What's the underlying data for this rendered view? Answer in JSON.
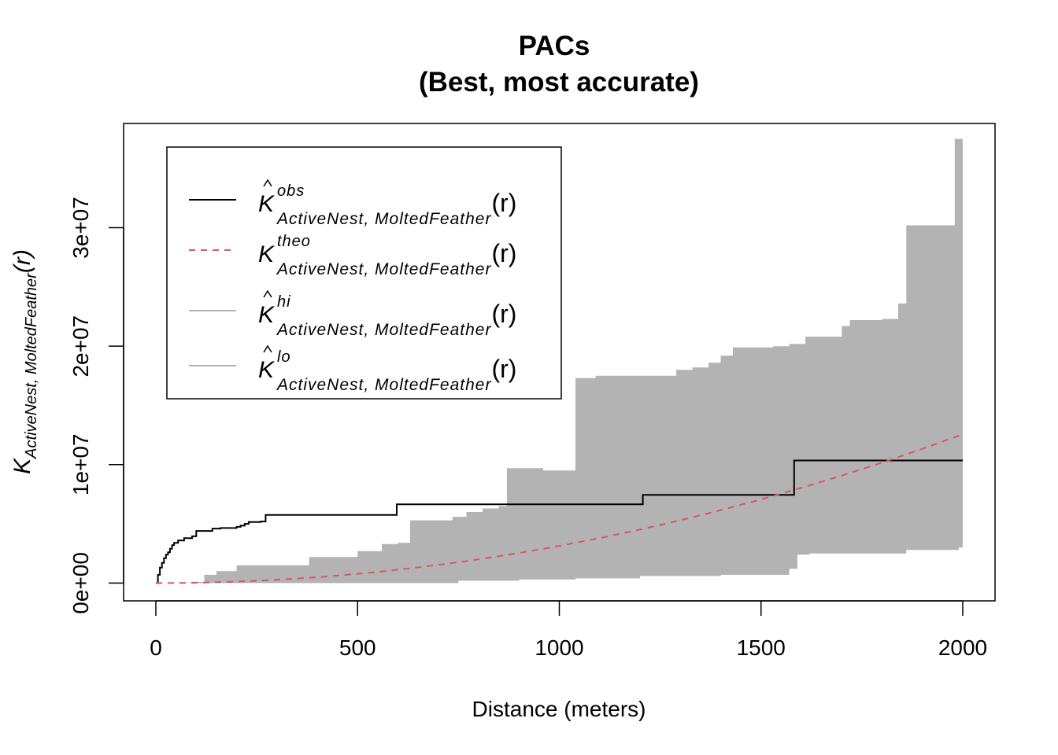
{
  "chart_data": {
    "type": "line",
    "title": "PACs",
    "subtitle": "(Best, most accurate)",
    "xlabel": "Distance (meters)",
    "ylabel": {
      "main": "K",
      "subscript": "ActiveNest, MoltedFeather",
      "arg": "(r)"
    },
    "xlim": [
      -80,
      2080
    ],
    "ylim": [
      -1500000,
      38800000
    ],
    "x_ticks": [
      {
        "value": 0,
        "label": "0"
      },
      {
        "value": 500,
        "label": "500"
      },
      {
        "value": 1000,
        "label": "1000"
      },
      {
        "value": 1500,
        "label": "1500"
      },
      {
        "value": 2000,
        "label": "2000"
      }
    ],
    "y_ticks": [
      {
        "value": 0,
        "label": "0e+00"
      },
      {
        "value": 10000000,
        "label": "1e+07"
      },
      {
        "value": 20000000,
        "label": "2e+07"
      },
      {
        "value": 30000000,
        "label": "3e+07"
      }
    ],
    "legend_position": "top-left",
    "legend": [
      {
        "key": "obs",
        "main": "K",
        "hat": true,
        "superscript": "obs",
        "subscript": "ActiveNest, MoltedFeather",
        "arg": "(r)",
        "color": "#000000",
        "dash": "solid"
      },
      {
        "key": "theo",
        "main": "K",
        "hat": false,
        "superscript": "theo",
        "subscript": "ActiveNest, MoltedFeather",
        "arg": "(r)",
        "color": "#DF536B",
        "dash": "dashed"
      },
      {
        "key": "hi",
        "main": "K",
        "hat": true,
        "superscript": "hi",
        "subscript": "ActiveNest, MoltedFeather",
        "arg": "(r)",
        "color": "#B3B3B3",
        "dash": "solid"
      },
      {
        "key": "lo",
        "main": "K",
        "hat": true,
        "superscript": "lo",
        "subscript": "ActiveNest, MoltedFeather",
        "arg": "(r)",
        "color": "#B3B3B3",
        "dash": "solid"
      }
    ],
    "colors": {
      "envelope": "#B3B3B3",
      "obs": "#000000",
      "theo": "#DF536B"
    },
    "series": [
      {
        "name": "obs",
        "style": "step",
        "points": [
          [
            0,
            0
          ],
          [
            5,
            700000
          ],
          [
            10,
            1300000
          ],
          [
            15,
            1700000
          ],
          [
            20,
            2100000
          ],
          [
            25,
            2400000
          ],
          [
            30,
            2600000
          ],
          [
            35,
            2900000
          ],
          [
            40,
            3200000
          ],
          [
            45,
            3400000
          ],
          [
            55,
            3600000
          ],
          [
            70,
            3800000
          ],
          [
            90,
            3950000
          ],
          [
            100,
            4400000
          ],
          [
            140,
            4600000
          ],
          [
            160,
            4650000
          ],
          [
            200,
            4750000
          ],
          [
            210,
            4850000
          ],
          [
            220,
            5000000
          ],
          [
            230,
            5150000
          ],
          [
            260,
            5200000
          ],
          [
            272,
            5750000
          ],
          [
            595,
            5750000
          ],
          [
            597,
            6650000
          ],
          [
            1205,
            6650000
          ],
          [
            1207,
            7450000
          ],
          [
            1580,
            7450000
          ],
          [
            1582,
            10350000
          ],
          [
            2000,
            10350000
          ]
        ]
      },
      {
        "name": "hi",
        "style": "step",
        "points": [
          [
            0,
            0
          ],
          [
            90,
            100000
          ],
          [
            120,
            700000
          ],
          [
            150,
            1000000
          ],
          [
            200,
            1500000
          ],
          [
            380,
            2200000
          ],
          [
            500,
            2700000
          ],
          [
            560,
            3300000
          ],
          [
            600,
            3400000
          ],
          [
            630,
            5300000
          ],
          [
            730,
            5300000
          ],
          [
            735,
            5600000
          ],
          [
            770,
            6000000
          ],
          [
            810,
            6300000
          ],
          [
            850,
            6500000
          ],
          [
            870,
            9700000
          ],
          [
            950,
            9700000
          ],
          [
            960,
            9500000
          ],
          [
            1025,
            9500000
          ],
          [
            1040,
            17300000
          ],
          [
            1090,
            17500000
          ],
          [
            1250,
            17500000
          ],
          [
            1290,
            18000000
          ],
          [
            1330,
            18200000
          ],
          [
            1370,
            18600000
          ],
          [
            1400,
            19200000
          ],
          [
            1430,
            19900000
          ],
          [
            1530,
            20000000
          ],
          [
            1570,
            20200000
          ],
          [
            1610,
            20800000
          ],
          [
            1690,
            20800000
          ],
          [
            1700,
            21700000
          ],
          [
            1720,
            22200000
          ],
          [
            1800,
            22300000
          ],
          [
            1840,
            23600000
          ],
          [
            1860,
            30200000
          ],
          [
            1970,
            30200000
          ],
          [
            1980,
            37500000
          ],
          [
            2000,
            37500000
          ]
        ]
      },
      {
        "name": "lo",
        "style": "step",
        "points": [
          [
            0,
            0
          ],
          [
            730,
            0
          ],
          [
            750,
            200000
          ],
          [
            900,
            300000
          ],
          [
            1040,
            400000
          ],
          [
            1200,
            600000
          ],
          [
            1400,
            700000
          ],
          [
            1560,
            700000
          ],
          [
            1570,
            1200000
          ],
          [
            1590,
            2400000
          ],
          [
            1620,
            2500000
          ],
          [
            1860,
            2800000
          ],
          [
            1990,
            3000000
          ],
          [
            2000,
            3000000
          ]
        ]
      },
      {
        "name": "theo",
        "style": "curve",
        "formula": "pi*r^2",
        "x_range": [
          0,
          2000
        ]
      }
    ]
  }
}
